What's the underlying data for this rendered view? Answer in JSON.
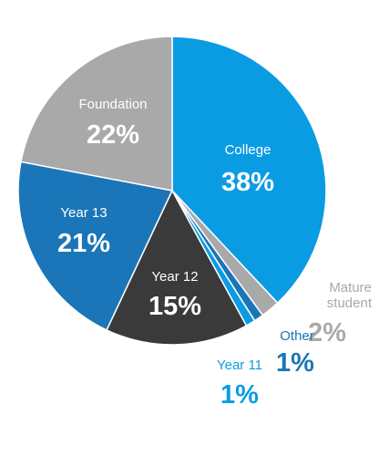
{
  "chart_data": {
    "type": "pie",
    "title": "",
    "start_angle_deg": 0,
    "direction": "clockwise",
    "slices": [
      {
        "label": "College",
        "value": 38,
        "display": "38%",
        "color": "#0a9ce3",
        "label_color": "#ffffff"
      },
      {
        "label": "Mature student",
        "label_lines": [
          "Mature",
          "student"
        ],
        "value": 2,
        "display": "2%",
        "color": "#a9a9a9",
        "label_color": "#a9a9a9"
      },
      {
        "label": "Other",
        "value": 1,
        "display": "1%",
        "color": "#1a76b8",
        "label_color": "#1a76b8"
      },
      {
        "label": "Year 11",
        "value": 1,
        "display": "1%",
        "color": "#0a9ce3",
        "label_color": "#0a9ce3"
      },
      {
        "label": "Year 12",
        "value": 15,
        "display": "15%",
        "color": "#3a3a3a",
        "label_color": "#ffffff"
      },
      {
        "label": "Year 13",
        "value": 21,
        "display": "21%",
        "color": "#1a76b8",
        "label_color": "#ffffff"
      },
      {
        "label": "Foundation",
        "value": 22,
        "display": "22%",
        "color": "#a9a9a9",
        "label_color": "#ffffff"
      }
    ]
  }
}
